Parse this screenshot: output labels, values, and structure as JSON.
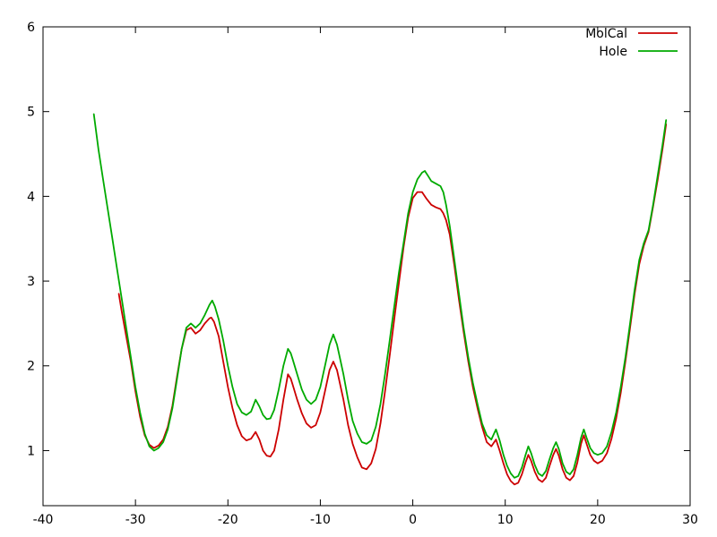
{
  "page": {
    "background_color": "#ffffff",
    "border_color": "#000000"
  },
  "chart_data": {
    "type": "line",
    "title": "",
    "xlabel": "",
    "ylabel": "",
    "xlim": [
      -40,
      30
    ],
    "ylim": [
      0.35,
      6
    ],
    "xticks": [
      -40,
      -30,
      -20,
      -10,
      0,
      10,
      20,
      30
    ],
    "yticks": [
      1,
      2,
      3,
      4,
      5,
      6
    ],
    "grid": false,
    "legend_position": "top-right-inside",
    "series": [
      {
        "name": "MolCal",
        "color": "#cc0000",
        "points": [
          [
            -31.8,
            2.85
          ],
          [
            -31.5,
            2.65
          ],
          [
            -31,
            2.35
          ],
          [
            -30.5,
            2.05
          ],
          [
            -30,
            1.7
          ],
          [
            -29.5,
            1.4
          ],
          [
            -29,
            1.18
          ],
          [
            -28.5,
            1.07
          ],
          [
            -28,
            1.03
          ],
          [
            -27.5,
            1.06
          ],
          [
            -27,
            1.13
          ],
          [
            -26.5,
            1.28
          ],
          [
            -26,
            1.53
          ],
          [
            -25.5,
            1.88
          ],
          [
            -25,
            2.2
          ],
          [
            -24.5,
            2.42
          ],
          [
            -24,
            2.45
          ],
          [
            -23.5,
            2.38
          ],
          [
            -23,
            2.42
          ],
          [
            -22.5,
            2.5
          ],
          [
            -22,
            2.56
          ],
          [
            -21.8,
            2.57
          ],
          [
            -21.5,
            2.52
          ],
          [
            -21,
            2.35
          ],
          [
            -20.5,
            2.05
          ],
          [
            -20,
            1.75
          ],
          [
            -19.5,
            1.5
          ],
          [
            -19,
            1.3
          ],
          [
            -18.5,
            1.17
          ],
          [
            -18,
            1.12
          ],
          [
            -17.5,
            1.14
          ],
          [
            -17,
            1.22
          ],
          [
            -16.6,
            1.13
          ],
          [
            -16.2,
            1.0
          ],
          [
            -15.8,
            0.94
          ],
          [
            -15.4,
            0.93
          ],
          [
            -15,
            1.0
          ],
          [
            -14.5,
            1.25
          ],
          [
            -14,
            1.6
          ],
          [
            -13.5,
            1.9
          ],
          [
            -13.2,
            1.85
          ],
          [
            -13,
            1.78
          ],
          [
            -12.5,
            1.6
          ],
          [
            -12,
            1.44
          ],
          [
            -11.5,
            1.32
          ],
          [
            -11,
            1.27
          ],
          [
            -10.5,
            1.3
          ],
          [
            -10,
            1.45
          ],
          [
            -9.5,
            1.7
          ],
          [
            -9,
            1.95
          ],
          [
            -8.6,
            2.05
          ],
          [
            -8.2,
            1.95
          ],
          [
            -8,
            1.85
          ],
          [
            -7.5,
            1.6
          ],
          [
            -7,
            1.3
          ],
          [
            -6.5,
            1.08
          ],
          [
            -6,
            0.92
          ],
          [
            -5.5,
            0.8
          ],
          [
            -5,
            0.78
          ],
          [
            -4.5,
            0.85
          ],
          [
            -4,
            1.02
          ],
          [
            -3.5,
            1.32
          ],
          [
            -3,
            1.7
          ],
          [
            -2.5,
            2.12
          ],
          [
            -2,
            2.55
          ],
          [
            -1.5,
            2.98
          ],
          [
            -1,
            3.4
          ],
          [
            -0.5,
            3.75
          ],
          [
            0,
            3.98
          ],
          [
            0.5,
            4.05
          ],
          [
            1,
            4.05
          ],
          [
            1.5,
            3.97
          ],
          [
            2,
            3.9
          ],
          [
            2.5,
            3.87
          ],
          [
            3,
            3.85
          ],
          [
            3.3,
            3.8
          ],
          [
            3.6,
            3.72
          ],
          [
            4,
            3.55
          ],
          [
            4.5,
            3.18
          ],
          [
            5,
            2.78
          ],
          [
            5.5,
            2.4
          ],
          [
            6,
            2.05
          ],
          [
            6.5,
            1.75
          ],
          [
            7,
            1.5
          ],
          [
            7.5,
            1.28
          ],
          [
            8,
            1.1
          ],
          [
            8.5,
            1.05
          ],
          [
            9,
            1.13
          ],
          [
            9.4,
            1.0
          ],
          [
            9.8,
            0.85
          ],
          [
            10.2,
            0.72
          ],
          [
            10.6,
            0.64
          ],
          [
            11,
            0.6
          ],
          [
            11.4,
            0.62
          ],
          [
            11.8,
            0.72
          ],
          [
            12.2,
            0.86
          ],
          [
            12.5,
            0.95
          ],
          [
            12.8,
            0.88
          ],
          [
            13.2,
            0.75
          ],
          [
            13.6,
            0.66
          ],
          [
            14,
            0.63
          ],
          [
            14.4,
            0.68
          ],
          [
            14.8,
            0.82
          ],
          [
            15.2,
            0.95
          ],
          [
            15.5,
            1.02
          ],
          [
            15.8,
            0.94
          ],
          [
            16.2,
            0.78
          ],
          [
            16.6,
            0.68
          ],
          [
            17,
            0.65
          ],
          [
            17.4,
            0.7
          ],
          [
            17.8,
            0.86
          ],
          [
            18.2,
            1.08
          ],
          [
            18.5,
            1.18
          ],
          [
            18.8,
            1.08
          ],
          [
            19.2,
            0.95
          ],
          [
            19.6,
            0.88
          ],
          [
            20,
            0.85
          ],
          [
            20.5,
            0.88
          ],
          [
            21,
            0.97
          ],
          [
            21.5,
            1.14
          ],
          [
            22,
            1.38
          ],
          [
            22.5,
            1.68
          ],
          [
            23,
            2.05
          ],
          [
            23.5,
            2.45
          ],
          [
            24,
            2.85
          ],
          [
            24.5,
            3.2
          ],
          [
            25,
            3.42
          ],
          [
            25.5,
            3.58
          ],
          [
            26,
            3.88
          ],
          [
            26.5,
            4.2
          ],
          [
            27,
            4.55
          ],
          [
            27.4,
            4.85
          ]
        ]
      },
      {
        "name": "Hole",
        "color": "#00aa00",
        "points": [
          [
            -34.5,
            4.97
          ],
          [
            -34,
            4.55
          ],
          [
            -33.5,
            4.2
          ],
          [
            -33,
            3.85
          ],
          [
            -32.5,
            3.5
          ],
          [
            -32,
            3.15
          ],
          [
            -31.5,
            2.8
          ],
          [
            -31,
            2.45
          ],
          [
            -30.5,
            2.1
          ],
          [
            -30,
            1.75
          ],
          [
            -29.5,
            1.45
          ],
          [
            -29,
            1.2
          ],
          [
            -28.5,
            1.05
          ],
          [
            -28,
            1.0
          ],
          [
            -27.5,
            1.03
          ],
          [
            -27,
            1.1
          ],
          [
            -26.5,
            1.25
          ],
          [
            -26,
            1.5
          ],
          [
            -25.5,
            1.85
          ],
          [
            -25,
            2.2
          ],
          [
            -24.5,
            2.45
          ],
          [
            -24,
            2.5
          ],
          [
            -23.5,
            2.45
          ],
          [
            -23,
            2.5
          ],
          [
            -22.5,
            2.6
          ],
          [
            -22,
            2.72
          ],
          [
            -21.7,
            2.77
          ],
          [
            -21.4,
            2.7
          ],
          [
            -21,
            2.55
          ],
          [
            -20.5,
            2.3
          ],
          [
            -20,
            2.0
          ],
          [
            -19.5,
            1.75
          ],
          [
            -19,
            1.55
          ],
          [
            -18.5,
            1.45
          ],
          [
            -18,
            1.42
          ],
          [
            -17.5,
            1.46
          ],
          [
            -17,
            1.6
          ],
          [
            -16.6,
            1.52
          ],
          [
            -16.2,
            1.42
          ],
          [
            -15.8,
            1.37
          ],
          [
            -15.4,
            1.38
          ],
          [
            -15,
            1.48
          ],
          [
            -14.5,
            1.72
          ],
          [
            -14,
            2.0
          ],
          [
            -13.5,
            2.2
          ],
          [
            -13.2,
            2.15
          ],
          [
            -13,
            2.08
          ],
          [
            -12.5,
            1.9
          ],
          [
            -12,
            1.72
          ],
          [
            -11.5,
            1.6
          ],
          [
            -11,
            1.55
          ],
          [
            -10.5,
            1.6
          ],
          [
            -10,
            1.75
          ],
          [
            -9.5,
            2.0
          ],
          [
            -9,
            2.25
          ],
          [
            -8.6,
            2.37
          ],
          [
            -8.2,
            2.25
          ],
          [
            -8,
            2.15
          ],
          [
            -7.5,
            1.9
          ],
          [
            -7,
            1.6
          ],
          [
            -6.5,
            1.35
          ],
          [
            -6,
            1.2
          ],
          [
            -5.5,
            1.1
          ],
          [
            -5,
            1.08
          ],
          [
            -4.5,
            1.12
          ],
          [
            -4,
            1.28
          ],
          [
            -3.5,
            1.55
          ],
          [
            -3,
            1.9
          ],
          [
            -2.5,
            2.3
          ],
          [
            -2,
            2.7
          ],
          [
            -1.5,
            3.1
          ],
          [
            -1,
            3.45
          ],
          [
            -0.5,
            3.8
          ],
          [
            0,
            4.05
          ],
          [
            0.5,
            4.2
          ],
          [
            1,
            4.28
          ],
          [
            1.3,
            4.3
          ],
          [
            1.6,
            4.25
          ],
          [
            2,
            4.18
          ],
          [
            2.5,
            4.15
          ],
          [
            3,
            4.12
          ],
          [
            3.3,
            4.05
          ],
          [
            3.6,
            3.9
          ],
          [
            4,
            3.65
          ],
          [
            4.5,
            3.25
          ],
          [
            5,
            2.85
          ],
          [
            5.5,
            2.45
          ],
          [
            6,
            2.1
          ],
          [
            6.5,
            1.8
          ],
          [
            7,
            1.55
          ],
          [
            7.5,
            1.32
          ],
          [
            8,
            1.18
          ],
          [
            8.5,
            1.13
          ],
          [
            9,
            1.25
          ],
          [
            9.4,
            1.12
          ],
          [
            9.8,
            0.95
          ],
          [
            10.2,
            0.82
          ],
          [
            10.6,
            0.73
          ],
          [
            11,
            0.68
          ],
          [
            11.4,
            0.7
          ],
          [
            11.8,
            0.8
          ],
          [
            12.2,
            0.95
          ],
          [
            12.5,
            1.05
          ],
          [
            12.8,
            0.97
          ],
          [
            13.2,
            0.83
          ],
          [
            13.6,
            0.73
          ],
          [
            14,
            0.7
          ],
          [
            14.4,
            0.76
          ],
          [
            14.8,
            0.9
          ],
          [
            15.2,
            1.03
          ],
          [
            15.5,
            1.1
          ],
          [
            15.8,
            1.02
          ],
          [
            16.2,
            0.85
          ],
          [
            16.6,
            0.75
          ],
          [
            17,
            0.72
          ],
          [
            17.4,
            0.78
          ],
          [
            17.8,
            0.95
          ],
          [
            18.2,
            1.15
          ],
          [
            18.5,
            1.25
          ],
          [
            18.8,
            1.15
          ],
          [
            19.2,
            1.03
          ],
          [
            19.6,
            0.97
          ],
          [
            20,
            0.95
          ],
          [
            20.5,
            0.97
          ],
          [
            21,
            1.05
          ],
          [
            21.5,
            1.22
          ],
          [
            22,
            1.45
          ],
          [
            22.5,
            1.75
          ],
          [
            23,
            2.1
          ],
          [
            23.5,
            2.5
          ],
          [
            24,
            2.9
          ],
          [
            24.5,
            3.25
          ],
          [
            25,
            3.45
          ],
          [
            25.5,
            3.6
          ],
          [
            26,
            3.9
          ],
          [
            26.5,
            4.25
          ],
          [
            27,
            4.6
          ],
          [
            27.4,
            4.9
          ]
        ]
      }
    ]
  }
}
